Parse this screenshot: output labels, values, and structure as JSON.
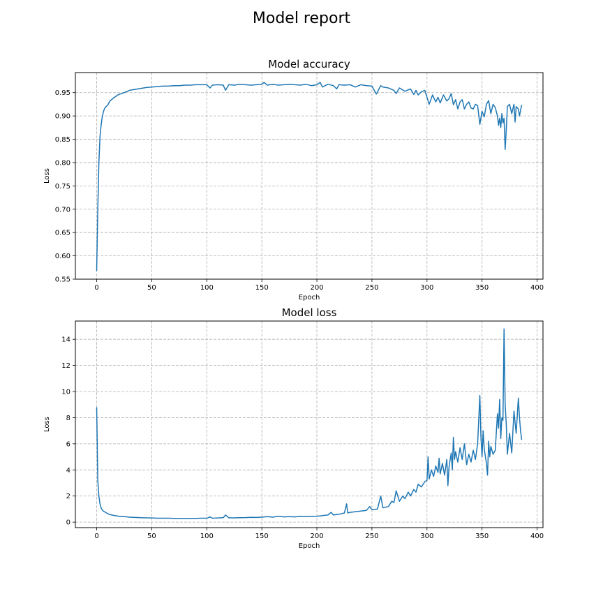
{
  "figure": {
    "title": "Model report"
  },
  "chart_data": [
    {
      "type": "line",
      "title": "Model accuracy",
      "xlabel": "Epoch",
      "ylabel": "Loss",
      "xlim": [
        -19.35,
        405.35
      ],
      "ylim": [
        0.55,
        0.993
      ],
      "xticks": [
        0,
        50,
        100,
        150,
        200,
        250,
        300,
        350,
        400
      ],
      "yticks": [
        0.55,
        0.6,
        0.65,
        0.7,
        0.75,
        0.8,
        0.85,
        0.9,
        0.95
      ],
      "grid": true,
      "color": "#1f77b4",
      "series": [
        {
          "points": [
            [
              0,
              0.568
            ],
            [
              1,
              0.7
            ],
            [
              2,
              0.8
            ],
            [
              3,
              0.855
            ],
            [
              4,
              0.88
            ],
            [
              5,
              0.897
            ],
            [
              6,
              0.908
            ],
            [
              7,
              0.915
            ],
            [
              8,
              0.919
            ],
            [
              10,
              0.923
            ],
            [
              12,
              0.932
            ],
            [
              15,
              0.938
            ],
            [
              18,
              0.943
            ],
            [
              20,
              0.946
            ],
            [
              25,
              0.95
            ],
            [
              28,
              0.953
            ],
            [
              30,
              0.955
            ],
            [
              35,
              0.957
            ],
            [
              40,
              0.959
            ],
            [
              45,
              0.961
            ],
            [
              50,
              0.962
            ],
            [
              55,
              0.963
            ],
            [
              60,
              0.964
            ],
            [
              65,
              0.964
            ],
            [
              70,
              0.965
            ],
            [
              75,
              0.965
            ],
            [
              80,
              0.966
            ],
            [
              85,
              0.966
            ],
            [
              90,
              0.967
            ],
            [
              95,
              0.967
            ],
            [
              100,
              0.967
            ],
            [
              103,
              0.96
            ],
            [
              105,
              0.966
            ],
            [
              110,
              0.967
            ],
            [
              115,
              0.966
            ],
            [
              117,
              0.955
            ],
            [
              120,
              0.967
            ],
            [
              125,
              0.966
            ],
            [
              130,
              0.968
            ],
            [
              135,
              0.967
            ],
            [
              140,
              0.966
            ],
            [
              145,
              0.967
            ],
            [
              150,
              0.968
            ],
            [
              152,
              0.972
            ],
            [
              155,
              0.966
            ],
            [
              160,
              0.968
            ],
            [
              165,
              0.966
            ],
            [
              170,
              0.967
            ],
            [
              175,
              0.968
            ],
            [
              180,
              0.967
            ],
            [
              185,
              0.966
            ],
            [
              190,
              0.968
            ],
            [
              195,
              0.965
            ],
            [
              200,
              0.967
            ],
            [
              203,
              0.972
            ],
            [
              205,
              0.962
            ],
            [
              210,
              0.968
            ],
            [
              215,
              0.965
            ],
            [
              218,
              0.958
            ],
            [
              220,
              0.967
            ],
            [
              225,
              0.966
            ],
            [
              230,
              0.967
            ],
            [
              235,
              0.962
            ],
            [
              240,
              0.967
            ],
            [
              245,
              0.965
            ],
            [
              250,
              0.964
            ],
            [
              254,
              0.947
            ],
            [
              258,
              0.965
            ],
            [
              260,
              0.962
            ],
            [
              265,
              0.96
            ],
            [
              270,
              0.955
            ],
            [
              272,
              0.948
            ],
            [
              275,
              0.96
            ],
            [
              280,
              0.953
            ],
            [
              285,
              0.958
            ],
            [
              288,
              0.946
            ],
            [
              290,
              0.955
            ],
            [
              292,
              0.945
            ],
            [
              295,
              0.952
            ],
            [
              298,
              0.955
            ],
            [
              300,
              0.94
            ],
            [
              302,
              0.925
            ],
            [
              305,
              0.945
            ],
            [
              308,
              0.93
            ],
            [
              310,
              0.94
            ],
            [
              312,
              0.928
            ],
            [
              315,
              0.945
            ],
            [
              318,
              0.932
            ],
            [
              320,
              0.937
            ],
            [
              322,
              0.948
            ],
            [
              324,
              0.924
            ],
            [
              326,
              0.935
            ],
            [
              328,
              0.915
            ],
            [
              330,
              0.93
            ],
            [
              332,
              0.935
            ],
            [
              334,
              0.915
            ],
            [
              336,
              0.925
            ],
            [
              338,
              0.93
            ],
            [
              340,
              0.917
            ],
            [
              342,
              0.915
            ],
            [
              344,
              0.925
            ],
            [
              346,
              0.922
            ],
            [
              348,
              0.882
            ],
            [
              350,
              0.91
            ],
            [
              352,
              0.898
            ],
            [
              354,
              0.925
            ],
            [
              356,
              0.933
            ],
            [
              358,
              0.905
            ],
            [
              360,
              0.925
            ],
            [
              362,
              0.918
            ],
            [
              364,
              0.9
            ],
            [
              365,
              0.88
            ],
            [
              366,
              0.895
            ],
            [
              367,
              0.875
            ],
            [
              368,
              0.905
            ],
            [
              369,
              0.885
            ],
            [
              370,
              0.895
            ],
            [
              371,
              0.828
            ],
            [
              372,
              0.87
            ],
            [
              373,
              0.92
            ],
            [
              375,
              0.925
            ],
            [
              377,
              0.905
            ],
            [
              379,
              0.925
            ],
            [
              380,
              0.887
            ],
            [
              381,
              0.92
            ],
            [
              383,
              0.915
            ],
            [
              384,
              0.9
            ],
            [
              385,
              0.912
            ],
            [
              386,
              0.924
            ]
          ]
        }
      ]
    },
    {
      "type": "line",
      "title": "Model loss",
      "xlabel": "Epoch",
      "ylabel": "Loss",
      "xlim": [
        -19.35,
        405.35
      ],
      "ylim": [
        -0.42,
        15.4
      ],
      "xticks": [
        0,
        50,
        100,
        150,
        200,
        250,
        300,
        350,
        400
      ],
      "yticks": [
        0,
        2,
        4,
        6,
        8,
        10,
        12,
        14
      ],
      "grid": true,
      "color": "#1f77b4",
      "series": [
        {
          "points": [
            [
              0,
              8.8
            ],
            [
              1,
              3.2
            ],
            [
              2,
              2.0
            ],
            [
              3,
              1.4
            ],
            [
              4,
              1.1
            ],
            [
              5,
              0.95
            ],
            [
              6,
              0.85
            ],
            [
              8,
              0.75
            ],
            [
              10,
              0.65
            ],
            [
              12,
              0.58
            ],
            [
              15,
              0.52
            ],
            [
              18,
              0.48
            ],
            [
              20,
              0.45
            ],
            [
              25,
              0.42
            ],
            [
              30,
              0.38
            ],
            [
              35,
              0.36
            ],
            [
              40,
              0.34
            ],
            [
              45,
              0.33
            ],
            [
              50,
              0.32
            ],
            [
              55,
              0.3
            ],
            [
              60,
              0.3
            ],
            [
              65,
              0.3
            ],
            [
              70,
              0.29
            ],
            [
              75,
              0.29
            ],
            [
              80,
              0.28
            ],
            [
              85,
              0.29
            ],
            [
              90,
              0.29
            ],
            [
              95,
              0.3
            ],
            [
              100,
              0.3
            ],
            [
              103,
              0.4
            ],
            [
              105,
              0.3
            ],
            [
              110,
              0.32
            ],
            [
              115,
              0.34
            ],
            [
              117,
              0.55
            ],
            [
              120,
              0.33
            ],
            [
              125,
              0.33
            ],
            [
              130,
              0.34
            ],
            [
              135,
              0.35
            ],
            [
              140,
              0.37
            ],
            [
              145,
              0.36
            ],
            [
              150,
              0.38
            ],
            [
              155,
              0.42
            ],
            [
              160,
              0.38
            ],
            [
              165,
              0.45
            ],
            [
              170,
              0.4
            ],
            [
              175,
              0.42
            ],
            [
              180,
              0.4
            ],
            [
              185,
              0.44
            ],
            [
              190,
              0.42
            ],
            [
              195,
              0.44
            ],
            [
              200,
              0.45
            ],
            [
              205,
              0.5
            ],
            [
              210,
              0.55
            ],
            [
              213,
              0.75
            ],
            [
              215,
              0.55
            ],
            [
              220,
              0.6
            ],
            [
              225,
              0.7
            ],
            [
              227,
              1.4
            ],
            [
              228,
              0.7
            ],
            [
              230,
              0.75
            ],
            [
              235,
              0.8
            ],
            [
              240,
              0.85
            ],
            [
              245,
              0.9
            ],
            [
              248,
              1.2
            ],
            [
              250,
              0.95
            ],
            [
              255,
              1.0
            ],
            [
              258,
              2.0
            ],
            [
              260,
              1.1
            ],
            [
              265,
              1.2
            ],
            [
              268,
              1.6
            ],
            [
              270,
              1.5
            ],
            [
              272,
              2.4
            ],
            [
              275,
              1.6
            ],
            [
              278,
              2.0
            ],
            [
              280,
              1.8
            ],
            [
              283,
              2.3
            ],
            [
              285,
              2.0
            ],
            [
              288,
              2.5
            ],
            [
              290,
              2.3
            ],
            [
              292,
              2.9
            ],
            [
              295,
              2.7
            ],
            [
              298,
              3.1
            ],
            [
              300,
              3.2
            ],
            [
              301,
              5.0
            ],
            [
              302,
              3.3
            ],
            [
              304,
              4.0
            ],
            [
              306,
              3.5
            ],
            [
              308,
              4.3
            ],
            [
              310,
              3.8
            ],
            [
              311,
              4.9
            ],
            [
              312,
              3.7
            ],
            [
              314,
              4.5
            ],
            [
              316,
              3.6
            ],
            [
              318,
              4.8
            ],
            [
              319,
              2.8
            ],
            [
              320,
              4.2
            ],
            [
              322,
              5.3
            ],
            [
              323,
              4.0
            ],
            [
              324,
              6.5
            ],
            [
              325,
              4.8
            ],
            [
              326,
              5.4
            ],
            [
              328,
              4.6
            ],
            [
              330,
              5.7
            ],
            [
              332,
              4.8
            ],
            [
              334,
              6.0
            ],
            [
              336,
              4.4
            ],
            [
              338,
              5.2
            ],
            [
              340,
              4.6
            ],
            [
              342,
              5.5
            ],
            [
              344,
              4.8
            ],
            [
              346,
              6.0
            ],
            [
              348,
              9.7
            ],
            [
              349,
              6.5
            ],
            [
              350,
              5.0
            ],
            [
              351,
              7.0
            ],
            [
              352,
              5.6
            ],
            [
              354,
              4.5
            ],
            [
              355,
              3.6
            ],
            [
              356,
              6.2
            ],
            [
              357,
              5.0
            ],
            [
              358,
              5.8
            ],
            [
              360,
              5.2
            ],
            [
              362,
              5.5
            ],
            [
              364,
              8.3
            ],
            [
              365,
              7.2
            ],
            [
              366,
              9.4
            ],
            [
              367,
              6.4
            ],
            [
              368,
              8.0
            ],
            [
              369,
              7.8
            ],
            [
              370,
              14.8
            ],
            [
              371,
              9.0
            ],
            [
              372,
              7.5
            ],
            [
              373,
              5.2
            ],
            [
              375,
              6.8
            ],
            [
              377,
              5.3
            ],
            [
              379,
              8.5
            ],
            [
              381,
              6.8
            ],
            [
              383,
              9.5
            ],
            [
              384,
              8.0
            ],
            [
              385,
              7.0
            ],
            [
              386,
              6.3
            ]
          ]
        }
      ]
    }
  ]
}
